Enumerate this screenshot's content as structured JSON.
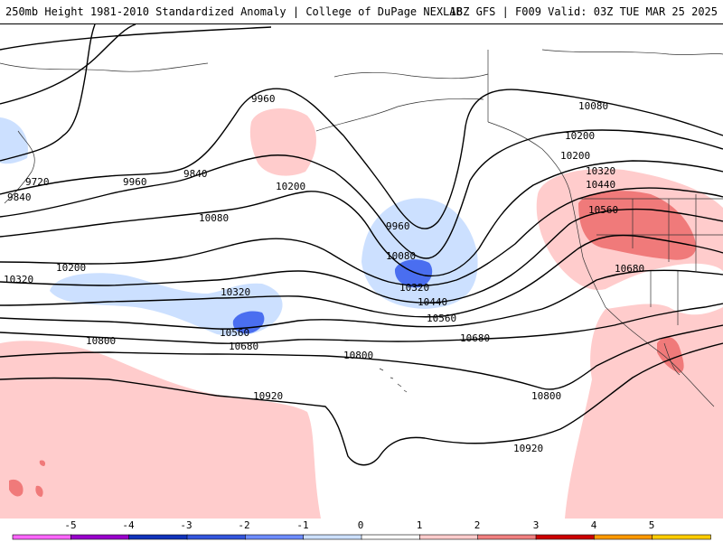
{
  "header": {
    "title_left": "250mb Height 1981-2010 Standardized Anomaly | College of DuPage NEXLAB",
    "title_right": "18Z GFS | F009 Valid: 03Z TUE MAR 25 2025"
  },
  "contours": {
    "labels": [
      "9960",
      "9720",
      "9840",
      "9840",
      "9960",
      "9960",
      "10080",
      "10080",
      "10080",
      "10200",
      "10200",
      "10200",
      "10200",
      "10320",
      "10320",
      "10320",
      "10320",
      "10440",
      "10440",
      "10560",
      "10560",
      "10560",
      "10680",
      "10680",
      "10680",
      "10800",
      "10800",
      "10800",
      "10920",
      "10920"
    ]
  },
  "colorbar": {
    "ticks": [
      "-5",
      "-4",
      "-3",
      "-2",
      "-1",
      "0",
      "1",
      "2",
      "3",
      "4",
      "5"
    ],
    "colors": [
      "#ff66ff",
      "#9900cc",
      "#1133bb",
      "#3355dd",
      "#6d8cff",
      "#cce0ff",
      "#ffffff",
      "#ffcccc",
      "#f08080",
      "#cc0000",
      "#ff9900",
      "#ffcc00"
    ]
  }
}
